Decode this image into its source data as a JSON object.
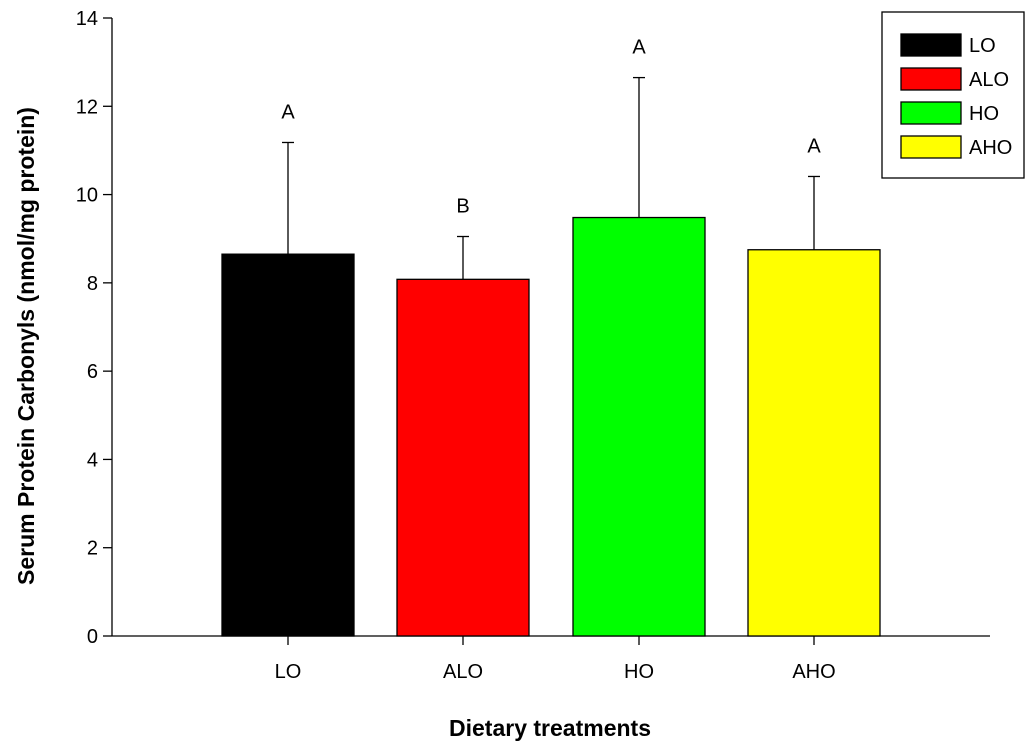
{
  "chart_data": {
    "type": "bar",
    "xlabel": "Dietary treatments",
    "ylabel": "Serum Protein Carbonyls (nmol/mg protein)",
    "ylim": [
      0,
      14
    ],
    "yticks": [
      0,
      2,
      4,
      6,
      8,
      10,
      12,
      14
    ],
    "categories": [
      "LO",
      "ALO",
      "HO",
      "AHO"
    ],
    "values": [
      8.65,
      8.08,
      9.48,
      8.75
    ],
    "error_upper": [
      2.53,
      0.97,
      3.17,
      1.66
    ],
    "significance_letters": [
      "A",
      "B",
      "A",
      "A"
    ],
    "colors": [
      "#000000",
      "#ff0000",
      "#00ff00",
      "#ffff00"
    ],
    "legend": {
      "placement": "top-right",
      "entries": [
        "LO",
        "ALO",
        "HO",
        "AHO"
      ]
    },
    "grid": false
  }
}
